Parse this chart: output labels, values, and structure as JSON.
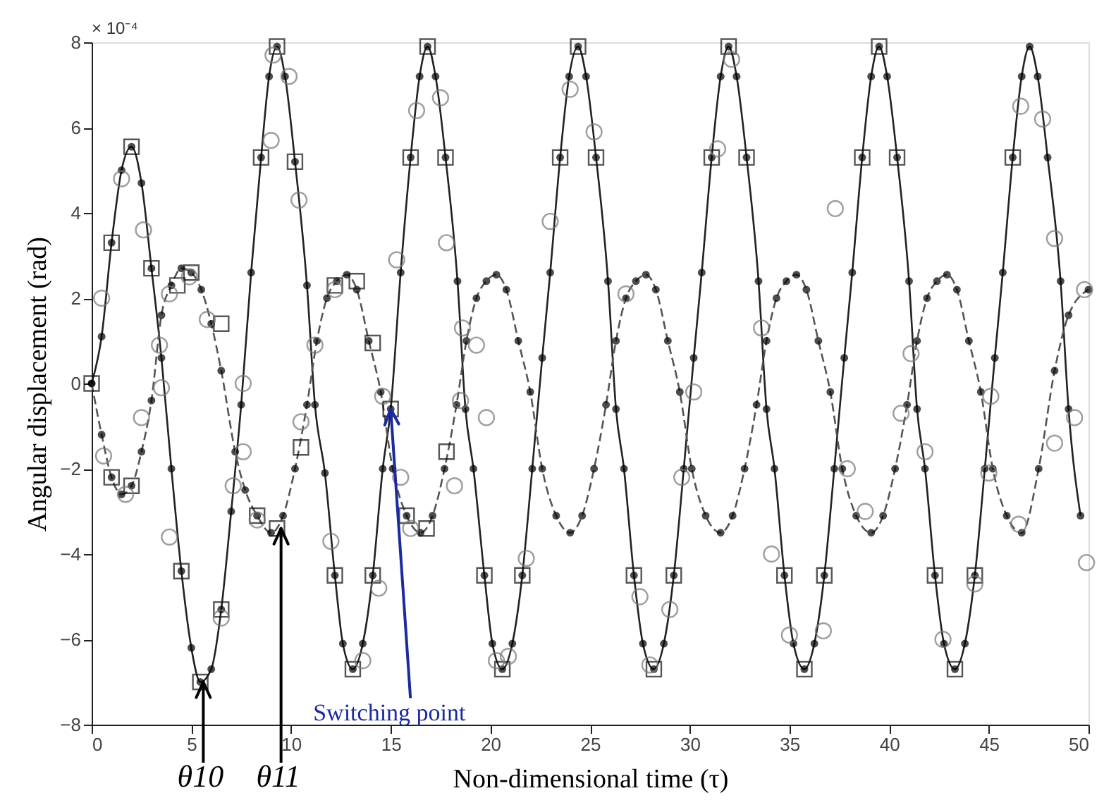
{
  "chart_data": {
    "type": "line",
    "xlabel": "Non-dimensional time (τ)",
    "ylabel": "Angular displacement (rad)",
    "xlim": [
      0,
      50
    ],
    "xticks": [
      0,
      5,
      10,
      15,
      20,
      25,
      30,
      35,
      40,
      45,
      50
    ],
    "ylim": [
      -8,
      8
    ],
    "yticks": [
      -8,
      -6,
      -4,
      -2,
      0,
      2,
      4,
      6,
      8
    ],
    "grid": false,
    "annotations": [
      "× 10⁻⁴",
      {
        "text": "θ10",
        "x": 5.6,
        "y": -7.0
      },
      {
        "text": "θ11",
        "x": 9.5,
        "y": -3.4
      },
      {
        "text": "Switching point",
        "x": 15,
        "y": -0.6
      }
    ],
    "series": [
      {
        "type": "line",
        "color": "#222222",
        "line_style": "solid",
        "marker": "circle",
        "x": [
          0,
          0.5,
          1.0,
          1.5,
          2.0,
          2.5,
          3.0,
          3.5,
          4.0,
          4.5,
          5.0,
          5.45,
          6.0,
          6.5,
          7.0,
          7.5,
          8.0,
          8.5,
          8.9,
          9.3,
          9.7,
          10.2,
          10.8,
          11.2,
          11.7,
          12.2,
          12.6,
          13.1,
          13.6,
          14.1,
          14.6,
          15.0,
          15.5,
          16.0,
          16.45,
          16.85,
          17.25,
          17.75,
          18.35,
          18.75,
          19.15,
          19.7,
          20.1,
          20.6,
          21.1,
          21.6,
          22.1,
          22.6,
          23.0,
          23.5,
          23.95,
          24.4,
          24.8,
          25.3,
          25.9,
          26.3,
          26.7,
          27.2,
          27.65,
          28.2,
          28.7,
          29.2,
          29.7,
          30.2,
          30.6,
          31.1,
          31.55,
          31.95,
          32.35,
          32.85,
          33.45,
          33.85,
          34.25,
          34.75,
          35.2,
          35.75,
          36.25,
          36.75,
          37.25,
          37.75,
          38.15,
          38.65,
          39.1,
          39.5,
          39.9,
          40.4,
          41.0,
          41.4,
          41.8,
          42.3,
          42.75,
          43.3,
          43.8,
          44.3,
          44.8,
          45.3,
          45.7,
          46.2,
          46.65,
          47.05,
          47.45,
          47.95,
          48.6,
          49.0,
          49.6
        ],
        "values": [
          0,
          1.1,
          3.3,
          5.0,
          5.55,
          4.7,
          2.7,
          0.6,
          -2.0,
          -4.4,
          -6.2,
          -7.0,
          -6.7,
          -5.3,
          -3.0,
          -0.5,
          2.6,
          5.3,
          7.2,
          7.9,
          7.2,
          5.2,
          2.3,
          -0.5,
          -2.1,
          -4.5,
          -6.1,
          -6.7,
          -6.1,
          -4.5,
          -2.0,
          -0.6,
          2.6,
          5.3,
          7.2,
          7.9,
          7.2,
          5.3,
          2.4,
          -0.6,
          -2.0,
          -4.5,
          -6.1,
          -6.7,
          -6.1,
          -4.5,
          -2.0,
          0.6,
          2.6,
          5.3,
          7.2,
          7.9,
          7.2,
          5.3,
          2.4,
          -0.6,
          -2.0,
          -4.5,
          -6.1,
          -6.7,
          -6.1,
          -4.5,
          -2.0,
          0.6,
          2.6,
          5.3,
          7.2,
          7.9,
          7.2,
          5.3,
          2.4,
          -0.6,
          -2.0,
          -4.5,
          -6.1,
          -6.7,
          -6.1,
          -4.5,
          -2.0,
          0.6,
          2.6,
          5.3,
          7.2,
          7.9,
          7.2,
          5.3,
          2.4,
          -0.6,
          -2.0,
          -4.5,
          -6.1,
          -6.7,
          -6.1,
          -4.5,
          -2.0,
          0.6,
          2.6,
          5.3,
          7.2,
          7.9,
          7.2,
          5.3,
          2.4,
          -0.6,
          -3.1
        ]
      },
      {
        "type": "line",
        "color": "#555555",
        "line_style": "dashed",
        "marker": "circle",
        "x": [
          0,
          0.5,
          1.0,
          1.5,
          2.0,
          2.5,
          3.0,
          3.5,
          4.0,
          4.5,
          5.0,
          5.5,
          6.0,
          6.5,
          7.2,
          7.7,
          8.3,
          9.0,
          9.6,
          10.2,
          10.8,
          11.3,
          11.8,
          12.3,
          12.8,
          13.3,
          13.9,
          14.5,
          15.1,
          15.8,
          16.5,
          17.1,
          17.7,
          18.3,
          18.8,
          19.3,
          19.8,
          20.3,
          20.8,
          21.4,
          22.0,
          22.6,
          23.3,
          24.0,
          24.6,
          25.2,
          25.8,
          26.3,
          26.8,
          27.3,
          27.8,
          28.3,
          28.9,
          29.5,
          30.1,
          30.8,
          31.55,
          32.15,
          32.75,
          33.35,
          33.85,
          34.35,
          34.85,
          35.35,
          35.85,
          36.45,
          37.05,
          37.65,
          38.35,
          39.1,
          39.7,
          40.3,
          40.9,
          41.4,
          41.9,
          42.4,
          42.9,
          43.4,
          44.0,
          44.6,
          45.2,
          45.9,
          46.65,
          47.5,
          48.3,
          49.0,
          50.0
        ],
        "values": [
          0,
          -1.2,
          -2.2,
          -2.6,
          -2.4,
          -1.6,
          -0.4,
          1.6,
          2.3,
          2.7,
          2.6,
          2.2,
          1.4,
          0.3,
          -1.6,
          -2.5,
          -3.1,
          -3.5,
          -3.1,
          -2.0,
          -0.5,
          1.0,
          2.0,
          2.4,
          2.55,
          2.2,
          1.0,
          -0.2,
          -2.0,
          -3.1,
          -3.5,
          -3.1,
          -2.0,
          -0.5,
          1.0,
          2.0,
          2.4,
          2.55,
          2.2,
          1.0,
          -0.2,
          -2.0,
          -3.1,
          -3.5,
          -3.1,
          -2.0,
          -0.5,
          1.0,
          2.0,
          2.4,
          2.55,
          2.2,
          1.0,
          -0.2,
          -2.0,
          -3.1,
          -3.5,
          -3.1,
          -2.0,
          -0.5,
          1.0,
          2.0,
          2.4,
          2.55,
          2.2,
          1.0,
          -0.2,
          -2.0,
          -3.1,
          -3.5,
          -3.1,
          -2.0,
          -0.5,
          1.0,
          2.0,
          2.4,
          2.55,
          2.2,
          1.0,
          -0.2,
          -2.0,
          -3.1,
          -3.5,
          -2.0,
          0.3,
          1.6,
          2.2
        ]
      },
      {
        "type": "scatter",
        "color": "#111111",
        "marker": "square",
        "x": [
          0,
          1.0,
          2.0,
          3.0,
          4.5,
          5.45,
          6.5,
          8.5,
          9.3,
          10.2,
          12.2,
          13.1,
          14.1,
          16.0,
          16.85,
          17.75,
          19.7,
          20.6,
          21.6,
          23.5,
          24.4,
          25.3,
          27.2,
          28.2,
          29.2,
          31.1,
          31.95,
          32.85,
          34.75,
          35.75,
          36.75,
          38.65,
          39.5,
          40.4,
          42.3,
          43.3,
          44.3,
          46.2,
          1.0,
          2.0,
          4.3,
          5.0,
          6.5,
          8.3,
          9.3,
          10.5,
          12.2,
          13.3,
          14.1,
          15.0,
          15.8,
          16.8,
          17.8
        ],
        "values": [
          0,
          3.3,
          5.55,
          2.7,
          -4.4,
          -7.0,
          -5.3,
          5.3,
          7.9,
          5.2,
          -4.5,
          -6.7,
          -4.5,
          5.3,
          7.9,
          5.3,
          -4.5,
          -6.7,
          -4.5,
          5.3,
          7.9,
          5.3,
          -4.5,
          -6.7,
          -4.5,
          5.3,
          7.9,
          5.3,
          -4.5,
          -6.7,
          -4.5,
          5.3,
          7.9,
          5.3,
          -4.5,
          -6.7,
          -4.5,
          5.3,
          -2.2,
          -2.4,
          2.3,
          2.6,
          1.4,
          -3.1,
          -3.4,
          -1.5,
          2.3,
          2.4,
          0.95,
          -0.6,
          -3.1,
          -3.4,
          -1.6
        ]
      },
      {
        "type": "scatter",
        "color": "#777777",
        "marker": "circle",
        "x": [
          0.6,
          0.5,
          1.5,
          2.6,
          1.7,
          2.5,
          3.4,
          3.5,
          3.9,
          3.9,
          4.9,
          5.8,
          6.5,
          7.1,
          7.6,
          7.6,
          8.3,
          9.0,
          9.1,
          9.9,
          10.4,
          10.5,
          11.2,
          12.0,
          12.2,
          13.6,
          14.4,
          14.6,
          15.3,
          15.5,
          16.3,
          16.0,
          17.5,
          17.8,
          18.2,
          18.6,
          18.5,
          19.3,
          19.8,
          20.3,
          20.9,
          21.8,
          23.0,
          24.0,
          25.2,
          26.8,
          27.5,
          28.0,
          29.0,
          29.6,
          30.2,
          31.4,
          32.1,
          33.6,
          34.1,
          35.0,
          36.7,
          37.3,
          37.9,
          38.8,
          40.6,
          41.1,
          41.8,
          42.7,
          44.3,
          45.0,
          45.1,
          46.5,
          46.6,
          47.7,
          48.3,
          48.3,
          49.3,
          49.8,
          49.9
        ],
        "values": [
          -1.7,
          2.0,
          4.8,
          3.6,
          -2.6,
          -0.8,
          0.9,
          -0.1,
          -3.6,
          2.1,
          2.5,
          1.5,
          -5.5,
          -2.4,
          -1.6,
          0.0,
          -3.2,
          5.7,
          7.7,
          7.2,
          4.3,
          -0.9,
          0.9,
          -3.7,
          2.2,
          -6.5,
          -4.8,
          -0.3,
          2.9,
          -2.2,
          6.4,
          -3.4,
          6.7,
          3.3,
          -2.4,
          1.3,
          -0.4,
          0.9,
          -0.8,
          -6.5,
          -6.4,
          -4.1,
          3.8,
          6.9,
          5.9,
          2.1,
          -5.0,
          -6.6,
          -5.3,
          -2.2,
          -0.2,
          5.5,
          7.6,
          1.3,
          -4.0,
          -5.9,
          -5.8,
          4.1,
          -2.0,
          -3.0,
          -0.7,
          0.7,
          -1.6,
          -6.0,
          -4.7,
          -2.1,
          -0.3,
          -3.3,
          6.5,
          6.2,
          3.4,
          -1.4,
          -0.8,
          2.2,
          -4.2
        ]
      }
    ]
  }
}
